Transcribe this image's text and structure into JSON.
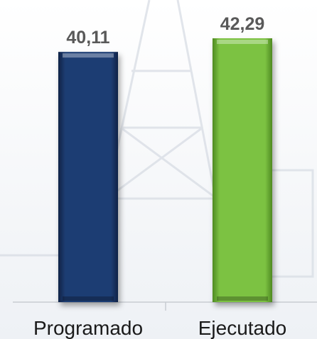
{
  "chart_data": {
    "type": "bar",
    "categories": [
      "Programado",
      "Ejecutado"
    ],
    "values": [
      40.11,
      42.29
    ],
    "value_labels": [
      "40,11",
      "42,29"
    ],
    "bar_colors": [
      "#1f3d73",
      "#7cc242"
    ],
    "bar_edge_colors": [
      "#0f2347",
      "#4f8a22"
    ],
    "title": "",
    "xlabel": "",
    "ylabel": "",
    "ylim": [
      0,
      42.29
    ],
    "grid": false,
    "legend": "none"
  }
}
